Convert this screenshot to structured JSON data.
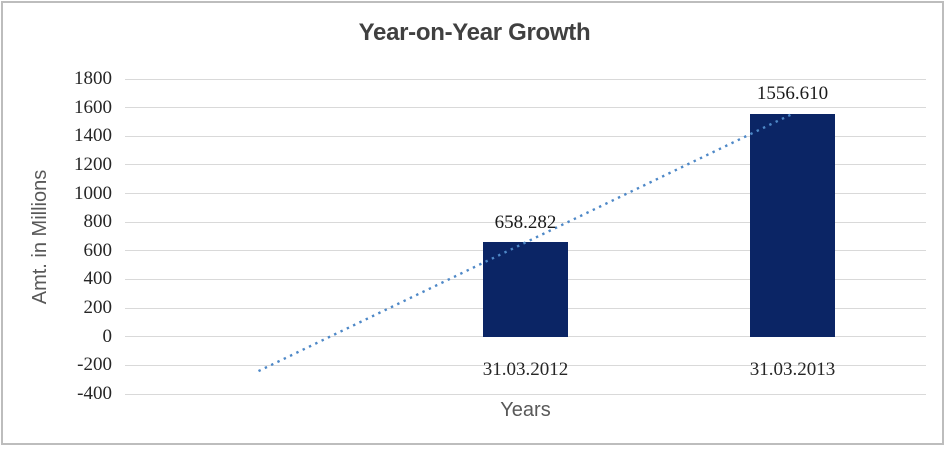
{
  "chart_data": {
    "type": "bar",
    "title": "Year-on-Year Growth",
    "categories": [
      "31.03.2012",
      "31.03.2013"
    ],
    "values": [
      658.282,
      1556.61
    ],
    "data_labels": [
      "658.282",
      "1556.610"
    ],
    "xlabel": "Years",
    "ylabel": "Amt. in Millions",
    "ylim": [
      -400,
      1800
    ],
    "ytick_step": 200,
    "yticks": [
      1800,
      1600,
      1400,
      1200,
      1000,
      800,
      600,
      400,
      200,
      0,
      -200,
      -400
    ],
    "grid": true,
    "legend": "none",
    "trendline": {
      "type": "linear",
      "style": "dotted",
      "color": "#4e88c7",
      "extends_back_categories": 1
    },
    "colors": {
      "bar": "#0b2565",
      "gridline": "#d9d9d9",
      "title_text": "#404040",
      "tick_text": "#262626",
      "axis_title_text": "#595959",
      "frame_border": "#bdbdbd"
    }
  }
}
